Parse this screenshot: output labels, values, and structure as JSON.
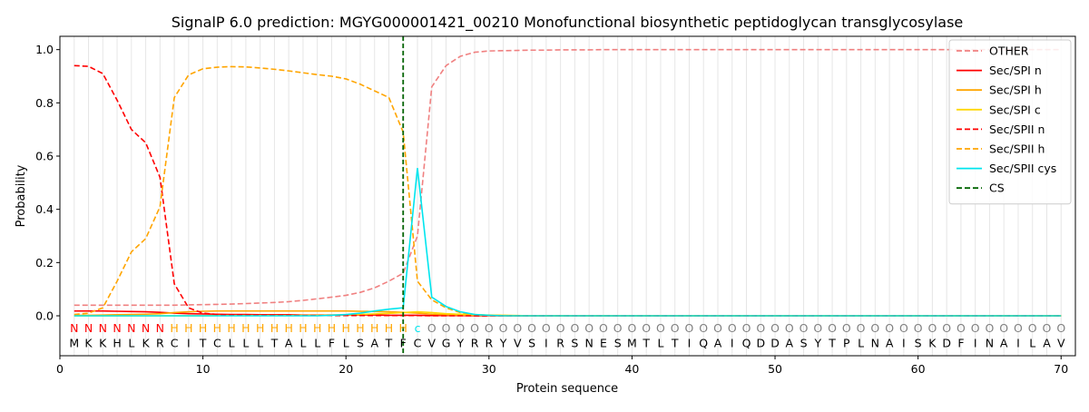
{
  "chart_data": {
    "type": "line",
    "title": "SignalP 6.0 prediction: MGYG000001421_00210 Monofunctional biosynthetic peptidoglycan transglycosylase",
    "xlabel": "Protein sequence",
    "ylabel": "Probability",
    "xlim": [
      0,
      71
    ],
    "ylim": [
      -0.15,
      1.05
    ],
    "xticks": [
      0,
      10,
      20,
      30,
      40,
      50,
      60,
      70
    ],
    "yticks": [
      0.0,
      0.2,
      0.4,
      0.6,
      0.8,
      1.0
    ],
    "grid": "vertical lines at each residue",
    "legend_position": "top-right",
    "cleavage_site": 24,
    "sequence": [
      "M",
      "K",
      "K",
      "H",
      "L",
      "K",
      "R",
      "C",
      "I",
      "T",
      "C",
      "L",
      "L",
      "L",
      "T",
      "A",
      "L",
      "L",
      "F",
      "L",
      "S",
      "A",
      "T",
      "F",
      "C",
      "V",
      "G",
      "Y",
      "R",
      "R",
      "Y",
      "V",
      "S",
      "I",
      "R",
      "S",
      "N",
      "E",
      "S",
      "M",
      "T",
      "L",
      "T",
      "I",
      "Q",
      "A",
      "I",
      "Q",
      "D",
      "D",
      "A",
      "S",
      "Y",
      "T",
      "P",
      "L",
      "N",
      "A",
      "I",
      "S",
      "K",
      "D",
      "F",
      "I",
      "N",
      "A",
      "I",
      "L",
      "A",
      "V"
    ],
    "region_labels": [
      "N",
      "N",
      "N",
      "N",
      "N",
      "N",
      "N",
      "H",
      "H",
      "H",
      "H",
      "H",
      "H",
      "H",
      "H",
      "H",
      "H",
      "H",
      "H",
      "H",
      "H",
      "H",
      "H",
      "H",
      "C",
      "O",
      "O",
      "O",
      "O",
      "O",
      "O",
      "O",
      "O",
      "O",
      "O",
      "O",
      "O",
      "O",
      "O",
      "O",
      "O",
      "O",
      "O",
      "O",
      "O",
      "O",
      "O",
      "O",
      "O",
      "O",
      "O",
      "O",
      "O",
      "O",
      "O",
      "O",
      "O",
      "O",
      "O",
      "O",
      "O",
      "O",
      "O",
      "O",
      "O",
      "O",
      "O",
      "O",
      "O",
      "O"
    ],
    "region_colors": {
      "N": "#ff0000",
      "H": "#ffa500",
      "C": "#00e5ee",
      "O": "#808080"
    },
    "series": [
      {
        "name": "OTHER",
        "color": "#f08080",
        "dash": "dashed",
        "values": [
          0.04,
          0.04,
          0.04,
          0.04,
          0.04,
          0.04,
          0.04,
          0.04,
          0.041,
          0.042,
          0.043,
          0.044,
          0.046,
          0.048,
          0.05,
          0.053,
          0.058,
          0.064,
          0.07,
          0.077,
          0.088,
          0.105,
          0.13,
          0.16,
          0.3,
          0.86,
          0.94,
          0.975,
          0.99,
          0.995,
          0.996,
          0.997,
          0.998,
          0.998,
          0.999,
          0.999,
          0.999,
          1,
          1,
          1,
          1,
          1,
          1,
          1,
          1,
          1,
          1,
          1,
          1,
          1,
          1,
          1,
          1,
          1,
          1,
          1,
          1,
          1,
          1,
          1,
          1,
          1,
          1,
          1,
          1,
          1,
          1,
          1,
          1,
          1
        ]
      },
      {
        "name": "Sec/SPI n",
        "color": "#ff0000",
        "dash": "solid",
        "values": [
          0.018,
          0.018,
          0.018,
          0.017,
          0.016,
          0.015,
          0.013,
          0.01,
          0.008,
          0.007,
          0.006,
          0.005,
          0.005,
          0.004,
          0.004,
          0.004,
          0.003,
          0.003,
          0.003,
          0.003,
          0.003,
          0.003,
          0.002,
          0.002,
          0.002,
          0.001,
          0.001,
          0.001,
          0,
          0,
          0,
          0,
          0,
          0,
          0,
          0,
          0,
          0,
          0,
          0,
          0,
          0,
          0,
          0,
          0,
          0,
          0,
          0,
          0,
          0,
          0,
          0,
          0,
          0,
          0,
          0,
          0,
          0,
          0,
          0,
          0,
          0,
          0,
          0,
          0,
          0,
          0,
          0,
          0,
          0
        ]
      },
      {
        "name": "Sec/SPI h",
        "color": "#ffa500",
        "dash": "solid",
        "values": [
          0.002,
          0.002,
          0.003,
          0.004,
          0.005,
          0.006,
          0.008,
          0.012,
          0.015,
          0.017,
          0.018,
          0.018,
          0.018,
          0.018,
          0.018,
          0.018,
          0.018,
          0.018,
          0.018,
          0.018,
          0.017,
          0.016,
          0.015,
          0.013,
          0.01,
          0.006,
          0.004,
          0.003,
          0.002,
          0.001,
          0,
          0,
          0,
          0,
          0,
          0,
          0,
          0,
          0,
          0,
          0,
          0,
          0,
          0,
          0,
          0,
          0,
          0,
          0,
          0,
          0,
          0,
          0,
          0,
          0,
          0,
          0,
          0,
          0,
          0,
          0,
          0,
          0,
          0,
          0,
          0,
          0,
          0,
          0,
          0
        ]
      },
      {
        "name": "Sec/SPI c",
        "color": "#ffd700",
        "dash": "solid",
        "values": [
          0,
          0,
          0,
          0,
          0,
          0,
          0,
          0,
          0,
          0,
          0.001,
          0.001,
          0.001,
          0.001,
          0.001,
          0.001,
          0.002,
          0.002,
          0.003,
          0.004,
          0.005,
          0.007,
          0.009,
          0.012,
          0.015,
          0.012,
          0.008,
          0.006,
          0.004,
          0.003,
          0.002,
          0.001,
          0,
          0,
          0,
          0,
          0,
          0,
          0,
          0,
          0,
          0,
          0,
          0,
          0,
          0,
          0,
          0,
          0,
          0,
          0,
          0,
          0,
          0,
          0,
          0,
          0,
          0,
          0,
          0,
          0,
          0,
          0,
          0,
          0,
          0,
          0,
          0,
          0,
          0
        ]
      },
      {
        "name": "Sec/SPII n",
        "color": "#ff0000",
        "dash": "dashed",
        "values": [
          0.94,
          0.937,
          0.91,
          0.81,
          0.7,
          0.65,
          0.52,
          0.12,
          0.03,
          0.01,
          0.005,
          0.003,
          0.002,
          0.002,
          0.001,
          0.001,
          0.001,
          0.001,
          0.001,
          0.001,
          0.001,
          0.001,
          0.001,
          0.001,
          0.001,
          0,
          0,
          0,
          0,
          0,
          0,
          0,
          0,
          0,
          0,
          0,
          0,
          0,
          0,
          0,
          0,
          0,
          0,
          0,
          0,
          0,
          0,
          0,
          0,
          0,
          0,
          0,
          0,
          0,
          0,
          0,
          0,
          0,
          0,
          0,
          0,
          0,
          0,
          0,
          0,
          0,
          0,
          0,
          0,
          0
        ]
      },
      {
        "name": "Sec/SPII h",
        "color": "#ffa500",
        "dash": "dashed",
        "values": [
          0.005,
          0.01,
          0.03,
          0.13,
          0.24,
          0.29,
          0.41,
          0.82,
          0.905,
          0.928,
          0.934,
          0.936,
          0.935,
          0.931,
          0.926,
          0.92,
          0.913,
          0.906,
          0.9,
          0.89,
          0.87,
          0.845,
          0.82,
          0.69,
          0.13,
          0.06,
          0.03,
          0.012,
          0.005,
          0.002,
          0.001,
          0,
          0,
          0,
          0,
          0,
          0,
          0,
          0,
          0,
          0,
          0,
          0,
          0,
          0,
          0,
          0,
          0,
          0,
          0,
          0,
          0,
          0,
          0,
          0,
          0,
          0,
          0,
          0,
          0,
          0,
          0,
          0,
          0,
          0,
          0,
          0,
          0,
          0,
          0
        ]
      },
      {
        "name": "Sec/SPII cys",
        "color": "#00e5ee",
        "dash": "solid",
        "values": [
          0,
          0,
          0,
          0,
          0,
          0,
          0,
          0,
          0,
          0,
          0,
          0,
          0,
          0,
          0,
          0,
          0,
          0,
          0.002,
          0.005,
          0.01,
          0.018,
          0.025,
          0.03,
          0.555,
          0.07,
          0.035,
          0.015,
          0.005,
          0.002,
          0,
          0,
          0,
          0,
          0,
          0,
          0,
          0,
          0,
          0,
          0,
          0,
          0,
          0,
          0,
          0,
          0,
          0,
          0,
          0,
          0,
          0,
          0,
          0,
          0,
          0,
          0,
          0,
          0,
          0,
          0,
          0,
          0,
          0,
          0,
          0,
          0,
          0,
          0,
          0
        ]
      },
      {
        "name": "CS",
        "color": "#006400",
        "dash": "dashed",
        "values": []
      }
    ]
  }
}
